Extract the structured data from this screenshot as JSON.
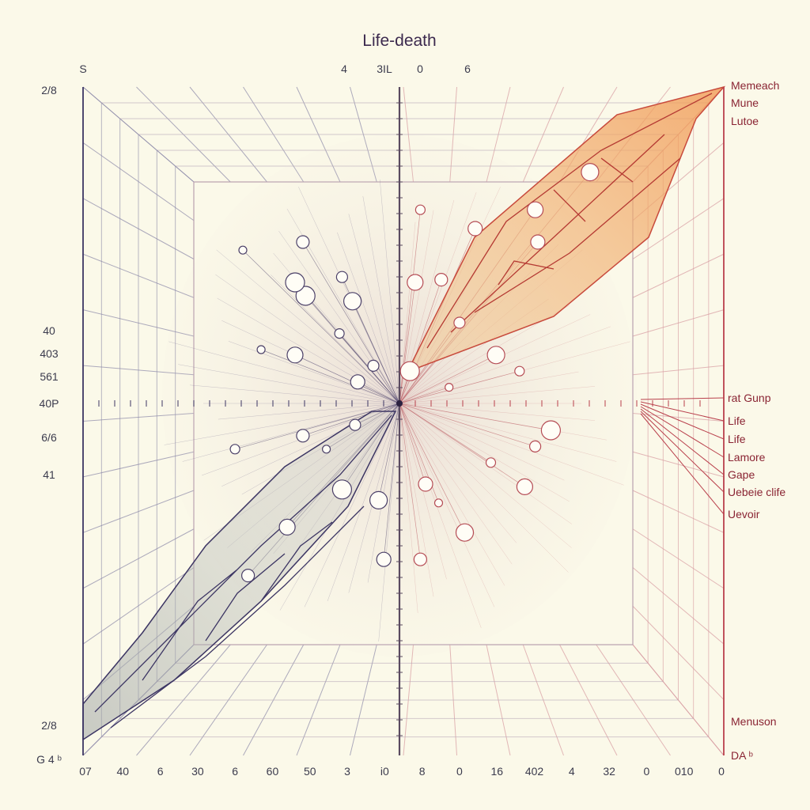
{
  "chart_data": {
    "type": "scatter",
    "title": "Life-death",
    "top_ticks": [
      "S",
      "4",
      "3IL",
      "0",
      "6"
    ],
    "left_ticks": [
      "2/8",
      "40",
      "403",
      "561",
      "40P",
      "6/6",
      "41",
      "2/8",
      "G 4 ᵇ"
    ],
    "bottom_ticks": [
      "07",
      "40",
      "6",
      "30",
      "6",
      "60",
      "50",
      "3",
      "i0",
      "8",
      "0",
      "16",
      "402",
      "4",
      "32",
      "0",
      "010",
      "0"
    ],
    "right_labels_top": [
      "Memeach",
      "Mune",
      "Lutoe"
    ],
    "right_labels_mid": [
      "rat Gunp",
      "Life",
      "Life",
      "Lamore",
      "Gape",
      "Uebeie clife",
      "Uevoir"
    ],
    "right_labels_bottom": [
      "Menuson",
      "DA ᵇ"
    ],
    "points": [
      {
        "x": -0.6,
        "y": 0.57
      },
      {
        "x": -0.36,
        "y": 0.4
      },
      {
        "x": -0.18,
        "y": 0.38
      },
      {
        "x": -0.4,
        "y": 0.18
      },
      {
        "x": -0.16,
        "y": 0.08
      },
      {
        "x": -0.37,
        "y": 0.6
      },
      {
        "x": -0.1,
        "y": 0.14
      },
      {
        "x": -0.23,
        "y": 0.26
      },
      {
        "x": -0.53,
        "y": 0.2
      },
      {
        "x": -0.4,
        "y": 0.45
      },
      {
        "x": 0.73,
        "y": 0.86
      },
      {
        "x": 0.52,
        "y": 0.72
      },
      {
        "x": 0.29,
        "y": 0.65
      },
      {
        "x": 0.16,
        "y": 0.46
      },
      {
        "x": 0.23,
        "y": 0.3
      },
      {
        "x": 0.46,
        "y": 0.12
      },
      {
        "x": 0.19,
        "y": 0.06
      },
      {
        "x": 0.04,
        "y": 0.12
      },
      {
        "x": 0.37,
        "y": 0.18
      },
      {
        "x": 0.06,
        "y": 0.45
      },
      {
        "x": 0.53,
        "y": 0.6
      },
      {
        "x": -0.37,
        "y": -0.12
      },
      {
        "x": -0.17,
        "y": -0.08
      },
      {
        "x": -0.63,
        "y": -0.17
      },
      {
        "x": -0.28,
        "y": -0.17
      },
      {
        "x": -0.22,
        "y": -0.32
      },
      {
        "x": -0.08,
        "y": -0.36
      },
      {
        "x": -0.43,
        "y": -0.46
      },
      {
        "x": -0.06,
        "y": -0.58
      },
      {
        "x": -0.58,
        "y": -0.64
      },
      {
        "x": 0.52,
        "y": -0.16
      },
      {
        "x": 0.35,
        "y": -0.22
      },
      {
        "x": 0.15,
        "y": -0.37
      },
      {
        "x": 0.58,
        "y": -0.1
      },
      {
        "x": 0.25,
        "y": -0.48
      },
      {
        "x": 0.48,
        "y": -0.31
      },
      {
        "x": 0.1,
        "y": -0.3
      },
      {
        "x": 0.08,
        "y": -0.58
      },
      {
        "x": -0.22,
        "y": 0.47
      },
      {
        "x": 0.08,
        "y": 0.72
      }
    ],
    "colors": {
      "left": "#3c3563",
      "right": "#b9404c",
      "orange": "#f3b05e",
      "shade": "#aeb0ac"
    }
  }
}
